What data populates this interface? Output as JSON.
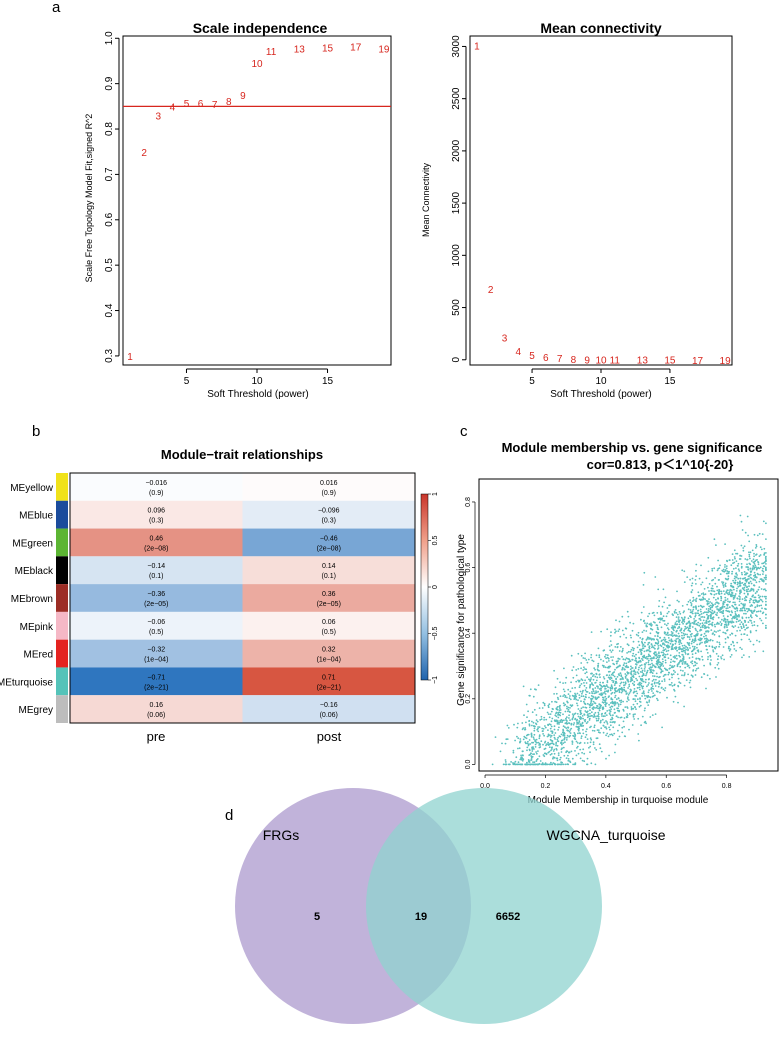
{
  "panel_labels": [
    "a",
    "b",
    "c",
    "d"
  ],
  "colors": {
    "red": "#d7261e",
    "teal": "#5bc0be",
    "purple": "#b9a9d6",
    "venn_left": "#b6a6d4",
    "venn_right": "#8fd3cf",
    "neg": "#2166ac",
    "pos": "#d6452a"
  },
  "chart_data": [
    {
      "id": "scale-independence",
      "type": "scatter",
      "title": "Scale independence",
      "xlabel": "Soft Threshold (power)",
      "ylabel": "Scale Free Topology Model Fit,signed R^2",
      "xlim": [
        0.5,
        19.5
      ],
      "ylim": [
        0.28,
        1.005
      ],
      "xticks": [
        "5",
        "10",
        "15"
      ],
      "yticks": [
        "0.3",
        "0.4",
        "0.5",
        "0.6",
        "0.7",
        "0.8",
        "0.9",
        "1.0"
      ],
      "hline": 0.85,
      "points": [
        {
          "x": 1,
          "y": 0.3,
          "label": "1"
        },
        {
          "x": 2,
          "y": 0.749,
          "label": "2"
        },
        {
          "x": 3,
          "y": 0.83,
          "label": "3"
        },
        {
          "x": 4,
          "y": 0.85,
          "label": "4"
        },
        {
          "x": 5,
          "y": 0.857,
          "label": "5"
        },
        {
          "x": 6,
          "y": 0.857,
          "label": "6"
        },
        {
          "x": 7,
          "y": 0.855,
          "label": "7"
        },
        {
          "x": 8,
          "y": 0.862,
          "label": "8"
        },
        {
          "x": 9,
          "y": 0.875,
          "label": "9"
        },
        {
          "x": 10,
          "y": 0.946,
          "label": "10"
        },
        {
          "x": 11,
          "y": 0.972,
          "label": "11"
        },
        {
          "x": 13,
          "y": 0.977,
          "label": "13"
        },
        {
          "x": 15,
          "y": 0.98,
          "label": "15"
        },
        {
          "x": 17,
          "y": 0.982,
          "label": "17"
        },
        {
          "x": 19,
          "y": 0.978,
          "label": "19"
        }
      ]
    },
    {
      "id": "mean-connectivity",
      "type": "scatter",
      "title": "Mean connectivity",
      "xlabel": "Soft Threshold (power)",
      "ylabel": "Mean Connectivity",
      "xlim": [
        0.5,
        19.5
      ],
      "ylim": [
        -50,
        3100
      ],
      "xticks": [
        "5",
        "10",
        "15"
      ],
      "yticks": [
        "0",
        "500",
        "1000",
        "1500",
        "2000",
        "2500",
        "3000"
      ],
      "points": [
        {
          "x": 1,
          "y": 3010,
          "label": "1"
        },
        {
          "x": 2,
          "y": 680,
          "label": "2"
        },
        {
          "x": 3,
          "y": 215,
          "label": "3"
        },
        {
          "x": 4,
          "y": 85,
          "label": "4"
        },
        {
          "x": 5,
          "y": 45,
          "label": "5"
        },
        {
          "x": 6,
          "y": 25,
          "label": "6"
        },
        {
          "x": 7,
          "y": 15,
          "label": "7"
        },
        {
          "x": 8,
          "y": 8,
          "label": "8"
        },
        {
          "x": 9,
          "y": 5,
          "label": "9"
        },
        {
          "x": 10,
          "y": 3,
          "label": "10"
        },
        {
          "x": 11,
          "y": 2,
          "label": "11"
        },
        {
          "x": 13,
          "y": 1,
          "label": "13"
        },
        {
          "x": 15,
          "y": 1,
          "label": "15"
        },
        {
          "x": 17,
          "y": 0,
          "label": "17"
        },
        {
          "x": 19,
          "y": 0,
          "label": "19"
        }
      ]
    },
    {
      "id": "module-trait",
      "type": "heatmap",
      "title": "Module−trait relationships",
      "columns": [
        "pre",
        "post"
      ],
      "colorbar": {
        "ticks": [
          "1",
          "0.5",
          "0",
          "−0.5",
          "−1"
        ],
        "range": [
          -1,
          1
        ]
      },
      "rows": [
        {
          "name": "MEyellow",
          "color": "#f0e21a",
          "cells": [
            {
              "v": -0.016,
              "t": "−0.016",
              "p": "(0.9)"
            },
            {
              "v": 0.016,
              "t": "0.016",
              "p": "(0.9)"
            }
          ]
        },
        {
          "name": "MEblue",
          "color": "#1b4c9c",
          "cells": [
            {
              "v": 0.096,
              "t": "0.096",
              "p": "(0.3)"
            },
            {
              "v": -0.096,
              "t": "−0.096",
              "p": "(0.3)"
            }
          ]
        },
        {
          "name": "MEgreen",
          "color": "#5cb533",
          "cells": [
            {
              "v": 0.46,
              "t": "0.46",
              "p": "(2e−08)"
            },
            {
              "v": -0.46,
              "t": "−0.46",
              "p": "(2e−08)"
            }
          ]
        },
        {
          "name": "MEblack",
          "color": "#000000",
          "cells": [
            {
              "v": -0.14,
              "t": "−0.14",
              "p": "(0.1)"
            },
            {
              "v": 0.14,
              "t": "0.14",
              "p": "(0.1)"
            }
          ]
        },
        {
          "name": "MEbrown",
          "color": "#9c2d25",
          "cells": [
            {
              "v": -0.36,
              "t": "−0.36",
              "p": "(2e−05)"
            },
            {
              "v": 0.36,
              "t": "0.36",
              "p": "(2e−05)"
            }
          ]
        },
        {
          "name": "MEpink",
          "color": "#f5b8c6",
          "cells": [
            {
              "v": -0.06,
              "t": "−0.06",
              "p": "(0.5)"
            },
            {
              "v": 0.06,
              "t": "0.06",
              "p": "(0.5)"
            }
          ]
        },
        {
          "name": "MEred",
          "color": "#e42320",
          "cells": [
            {
              "v": -0.32,
              "t": "−0.32",
              "p": "(1e−04)"
            },
            {
              "v": 0.32,
              "t": "0.32",
              "p": "(1e−04)"
            }
          ]
        },
        {
          "name": "MEturquoise",
          "color": "#54c3b9",
          "cells": [
            {
              "v": -0.71,
              "t": "−0.71",
              "p": "(2e−21)"
            },
            {
              "v": 0.71,
              "t": "0.71",
              "p": "(2e−21)"
            }
          ]
        },
        {
          "name": "MEgrey",
          "color": "#bdbdbd",
          "cells": [
            {
              "v": 0.16,
              "t": "0.16",
              "p": "(0.06)"
            },
            {
              "v": -0.16,
              "t": "−0.16",
              "p": "(0.06)"
            }
          ]
        }
      ]
    },
    {
      "id": "module-membership",
      "type": "scatter",
      "title": "Module membership vs. gene significance",
      "subtitle": "cor=0.813, p＜1^10{-20}",
      "xlabel": "Module Membership in turquoise module",
      "ylabel": "Gene significance for pathological type",
      "xlim": [
        -0.02,
        0.97
      ],
      "ylim": [
        -0.02,
        0.87
      ],
      "xticks": [
        "0.0",
        "0.2",
        "0.4",
        "0.6",
        "0.8"
      ],
      "yticks": [
        "0.0",
        "0.2",
        "0.4",
        "0.6",
        "0.8"
      ],
      "n_points": 6671,
      "correlation": 0.813,
      "point_color": "#5bc0be"
    },
    {
      "id": "venn",
      "type": "venn",
      "sets": [
        {
          "name": "FRGs",
          "only": "5"
        },
        {
          "name": "WGCNA_turquoise",
          "only": "6652"
        }
      ],
      "intersection": "19"
    }
  ]
}
